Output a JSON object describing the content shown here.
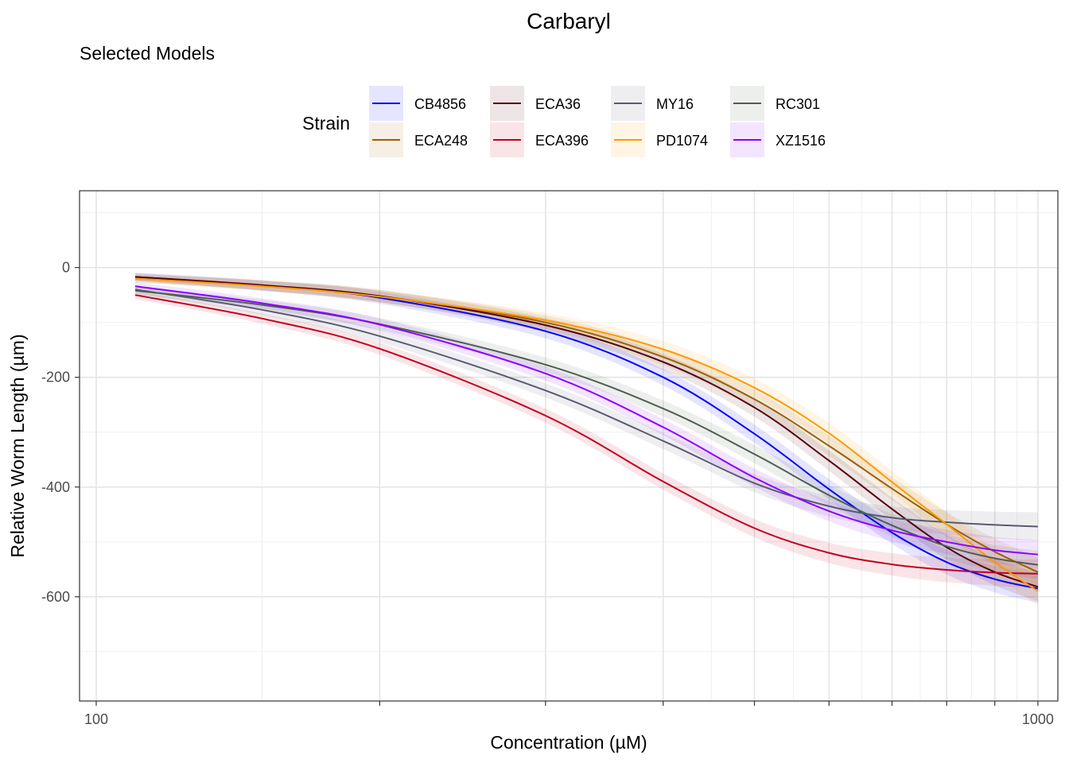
{
  "chart_data": {
    "type": "line",
    "title": "Carbaryl",
    "subtitle": "Selected Models",
    "xlabel": "Concentration (µM)",
    "ylabel": "Relative Worm Length (µm)",
    "x_scale": "log10",
    "xlim": [
      96,
      1050
    ],
    "ylim": [
      -790,
      140
    ],
    "x_ticks": [
      100,
      1000
    ],
    "x_tick_labels": [
      "100",
      "1000"
    ],
    "y_ticks": [
      0,
      -200,
      -400,
      -600
    ],
    "y_tick_labels": [
      "0",
      "-200",
      "-400",
      "-600"
    ],
    "grid": true,
    "legend": {
      "title": "Strain",
      "position": "top"
    },
    "x": [
      110,
      150,
      200,
      300,
      400,
      500,
      600,
      700,
      800,
      900,
      1000
    ],
    "series": [
      {
        "name": "CB4856",
        "color": "#0000FF",
        "values": [
          -17,
          -33,
          -55,
          -116,
          -200,
          -303,
          -404,
          -483,
          -537,
          -568,
          -585
        ]
      },
      {
        "name": "ECA248",
        "color": "#996000",
        "values": [
          -20,
          -33,
          -52,
          -100,
          -163,
          -240,
          -325,
          -403,
          -468,
          -518,
          -555
        ]
      },
      {
        "name": "ECA36",
        "color": "#52000B",
        "values": [
          -17,
          -32,
          -52,
          -105,
          -172,
          -255,
          -352,
          -440,
          -510,
          -555,
          -582
        ]
      },
      {
        "name": "ECA396",
        "color": "#C00020",
        "values": [
          -50,
          -93,
          -148,
          -270,
          -390,
          -475,
          -520,
          -541,
          -551,
          -556,
          -558
        ]
      },
      {
        "name": "MY16",
        "color": "#5A5A72",
        "values": [
          -40,
          -77,
          -125,
          -224,
          -316,
          -393,
          -435,
          -456,
          -464,
          -469,
          -472
        ]
      },
      {
        "name": "PD1074",
        "color": "#FF9900",
        "values": [
          -20,
          -34,
          -53,
          -96,
          -149,
          -219,
          -302,
          -391,
          -468,
          -537,
          -590
        ]
      },
      {
        "name": "RC301",
        "color": "#4F5F4F",
        "values": [
          -42,
          -68,
          -103,
          -177,
          -257,
          -340,
          -415,
          -470,
          -508,
          -530,
          -542
        ]
      },
      {
        "name": "XZ1516",
        "color": "#8C00FF",
        "values": [
          -34,
          -65,
          -104,
          -193,
          -291,
          -383,
          -444,
          -479,
          -500,
          -515,
          -523
        ]
      }
    ]
  }
}
